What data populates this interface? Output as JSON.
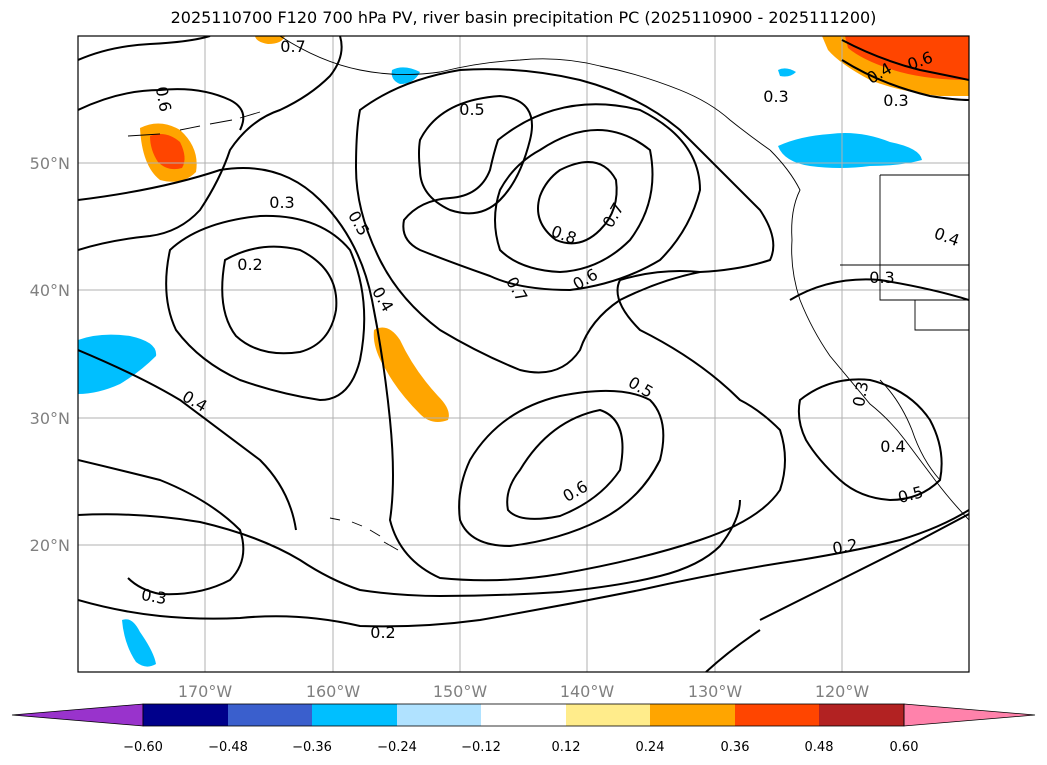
{
  "title": "2025110700 F120 700 hPa PV, river basin precipitation PC (2025110900 - 2025111200)",
  "colors": {
    "c_neg_060": "#9933cc",
    "c_neg_048": "#00008b",
    "c_neg_036": "#3a5fcd",
    "c_neg_024": "#00bfff",
    "c_neg_012": "#b0e2ff",
    "c_zero": "#ffffff",
    "c_pos_012": "#ffec8b",
    "c_pos_024": "#ffa500",
    "c_pos_036": "#ff4500",
    "c_pos_048": "#b22222",
    "c_pos_060": "#ff82ab"
  },
  "axes": {
    "lon_labels": [
      "170°W",
      "160°W",
      "150°W",
      "140°W",
      "130°W",
      "120°W"
    ],
    "lat_labels": [
      "50°N",
      "40°N",
      "30°N",
      "20°N"
    ]
  },
  "contour_labels": [
    "0.7",
    "0.6",
    "0.5",
    "0.3",
    "0.2",
    "0.5",
    "0.4",
    "0.8",
    "0.7",
    "0.7",
    "0.6",
    "0.4",
    "0.3",
    "0.4",
    "0.5",
    "0.6",
    "0.3",
    "0.2",
    "0.3",
    "0.4",
    "0.5",
    "0.2",
    "0.3",
    "0.6",
    "0.4",
    "0.3"
  ],
  "colorbar": {
    "tick_labels": [
      "−0.60",
      "−0.48",
      "−0.36",
      "−0.24",
      "−0.12",
      "0.12",
      "0.24",
      "0.36",
      "0.48",
      "0.60"
    ]
  }
}
